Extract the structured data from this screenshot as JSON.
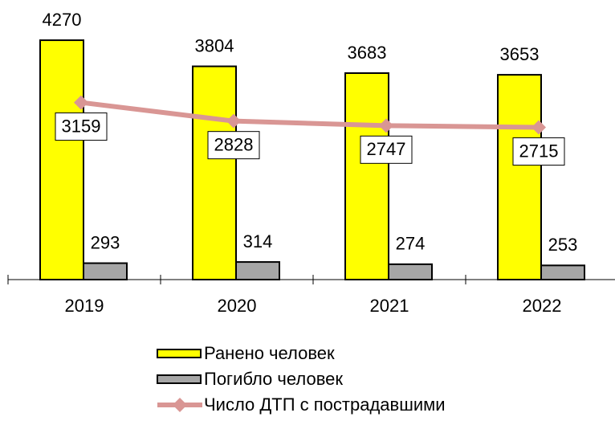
{
  "chart_data": {
    "type": "bar_line",
    "categories": [
      "2019",
      "2020",
      "2021",
      "2022"
    ],
    "ylim": [
      0,
      4500
    ],
    "series": [
      {
        "name": "Ранено человек",
        "type": "bar",
        "color": "#ffff00",
        "values": [
          4270,
          3804,
          3683,
          3653
        ]
      },
      {
        "name": "Погибло человек",
        "type": "bar",
        "color": "#a6a6a6",
        "values": [
          293,
          314,
          274,
          253
        ]
      },
      {
        "name": "Число ДТП с пострадавшими",
        "type": "line",
        "color": "#d99694",
        "values": [
          3159,
          2828,
          2747,
          2715
        ]
      }
    ]
  }
}
